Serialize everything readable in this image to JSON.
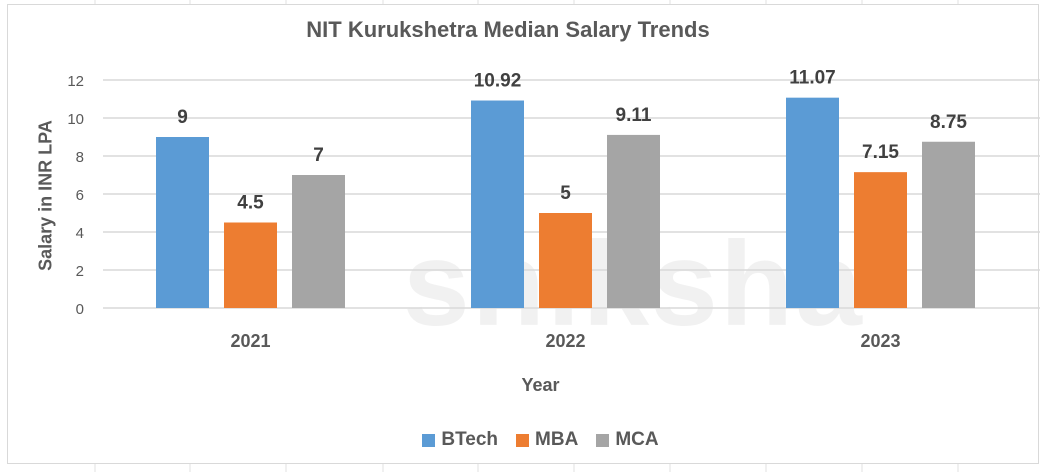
{
  "chart_data": {
    "type": "bar",
    "title": "NIT Kurukshetra Median Salary Trends",
    "xlabel": "Year",
    "ylabel": "Salary in INR LPA",
    "categories": [
      "2021",
      "2022",
      "2023"
    ],
    "series": [
      {
        "name": "BTech",
        "color": "#5b9bd5",
        "values": [
          9,
          10.92,
          11.07
        ]
      },
      {
        "name": "MBA",
        "color": "#ed7d31",
        "values": [
          4.5,
          5,
          7.15
        ]
      },
      {
        "name": "MCA",
        "color": "#a5a5a5",
        "values": [
          7,
          9.11,
          8.75
        ]
      }
    ],
    "ylim": [
      0,
      12
    ],
    "yticks": [
      0,
      2,
      4,
      6,
      8,
      10,
      12
    ],
    "grid": true,
    "legend_position": "bottom",
    "data_labels": true
  },
  "watermark": "shiksha"
}
